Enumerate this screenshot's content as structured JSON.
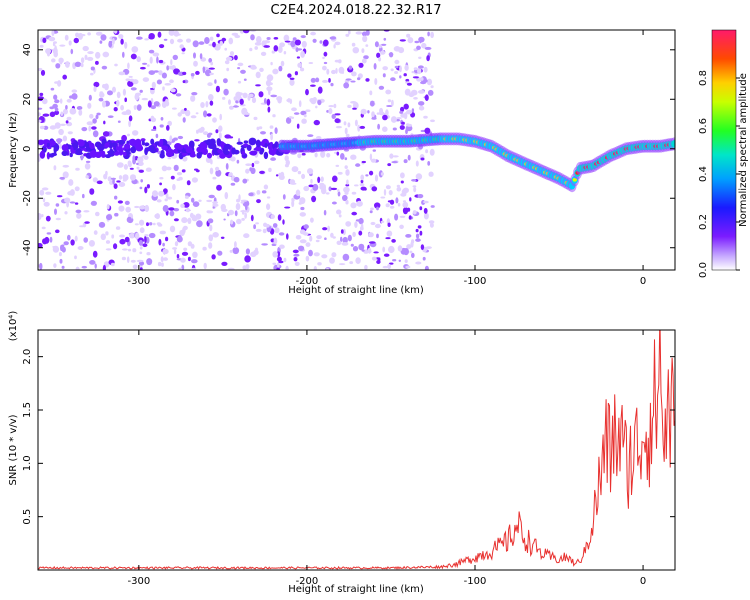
{
  "title": "C2E4.2024.018.22.32.R17",
  "colors": {
    "spectrogram_scatter": "#7b2cff",
    "ridge_high": "#ff1a1a",
    "snr_line": "#e8312f",
    "axis": "#000000"
  },
  "chart_data": [
    {
      "type": "heatmap",
      "xlabel": "Height of straight line (km)",
      "ylabel": "Frequency (Hz)",
      "xlim": [
        -360,
        19
      ],
      "ylim": [
        -49,
        48
      ],
      "xticks": [
        -300,
        -200,
        -100,
        0
      ],
      "yticks": [
        -40,
        -20,
        0,
        20,
        40
      ],
      "ridge": {
        "x": [
          -215,
          -200,
          -180,
          -160,
          -140,
          -120,
          -110,
          -100,
          -90,
          -80,
          -70,
          -60,
          -50,
          -42,
          -38,
          -30,
          -20,
          -10,
          0,
          10,
          19
        ],
        "y": [
          1,
          1,
          2,
          3,
          3,
          4,
          4,
          3,
          1,
          -3,
          -6,
          -9,
          -12,
          -15,
          -8,
          -7,
          -3,
          0,
          1,
          1,
          2
        ]
      },
      "colorbar": {
        "label": "Normalized spectral amplitude",
        "ticks": [
          0.0,
          0.2,
          0.4,
          0.6,
          0.8
        ],
        "tick_labels": [
          "0.0",
          "0.2",
          "0.4",
          "0.6",
          "0.8"
        ],
        "range": [
          0,
          1
        ]
      }
    },
    {
      "type": "line",
      "xlabel": "Height of straight line (km)",
      "ylabel": "SNR (10 * v/v)",
      "multiplier": "(x10⁴)",
      "xlim": [
        -360,
        19
      ],
      "ylim": [
        0,
        2.25
      ],
      "xticks": [
        -300,
        -200,
        -100,
        0
      ],
      "yticks": [
        0.5,
        1.0,
        1.5,
        2.0
      ],
      "series": [
        {
          "x": [
            -360,
            -250,
            -150,
            -120,
            -110,
            -100,
            -90,
            -85,
            -80,
            -75,
            -70,
            -65,
            -60,
            -55,
            -50,
            -45,
            -40,
            -35,
            -30,
            -25,
            -22,
            -20,
            -15,
            -10,
            -5,
            0,
            5,
            8,
            10,
            12,
            15,
            19
          ],
          "y": [
            0.02,
            0.02,
            0.02,
            0.03,
            0.06,
            0.12,
            0.18,
            0.22,
            0.28,
            0.42,
            0.3,
            0.22,
            0.15,
            0.12,
            0.1,
            0.12,
            0.05,
            0.15,
            0.45,
            0.9,
            1.2,
            1.1,
            1.3,
            1.0,
            1.1,
            1.3,
            1.4,
            1.6,
            2.0,
            1.2,
            1.5,
            1.4
          ]
        }
      ]
    }
  ]
}
